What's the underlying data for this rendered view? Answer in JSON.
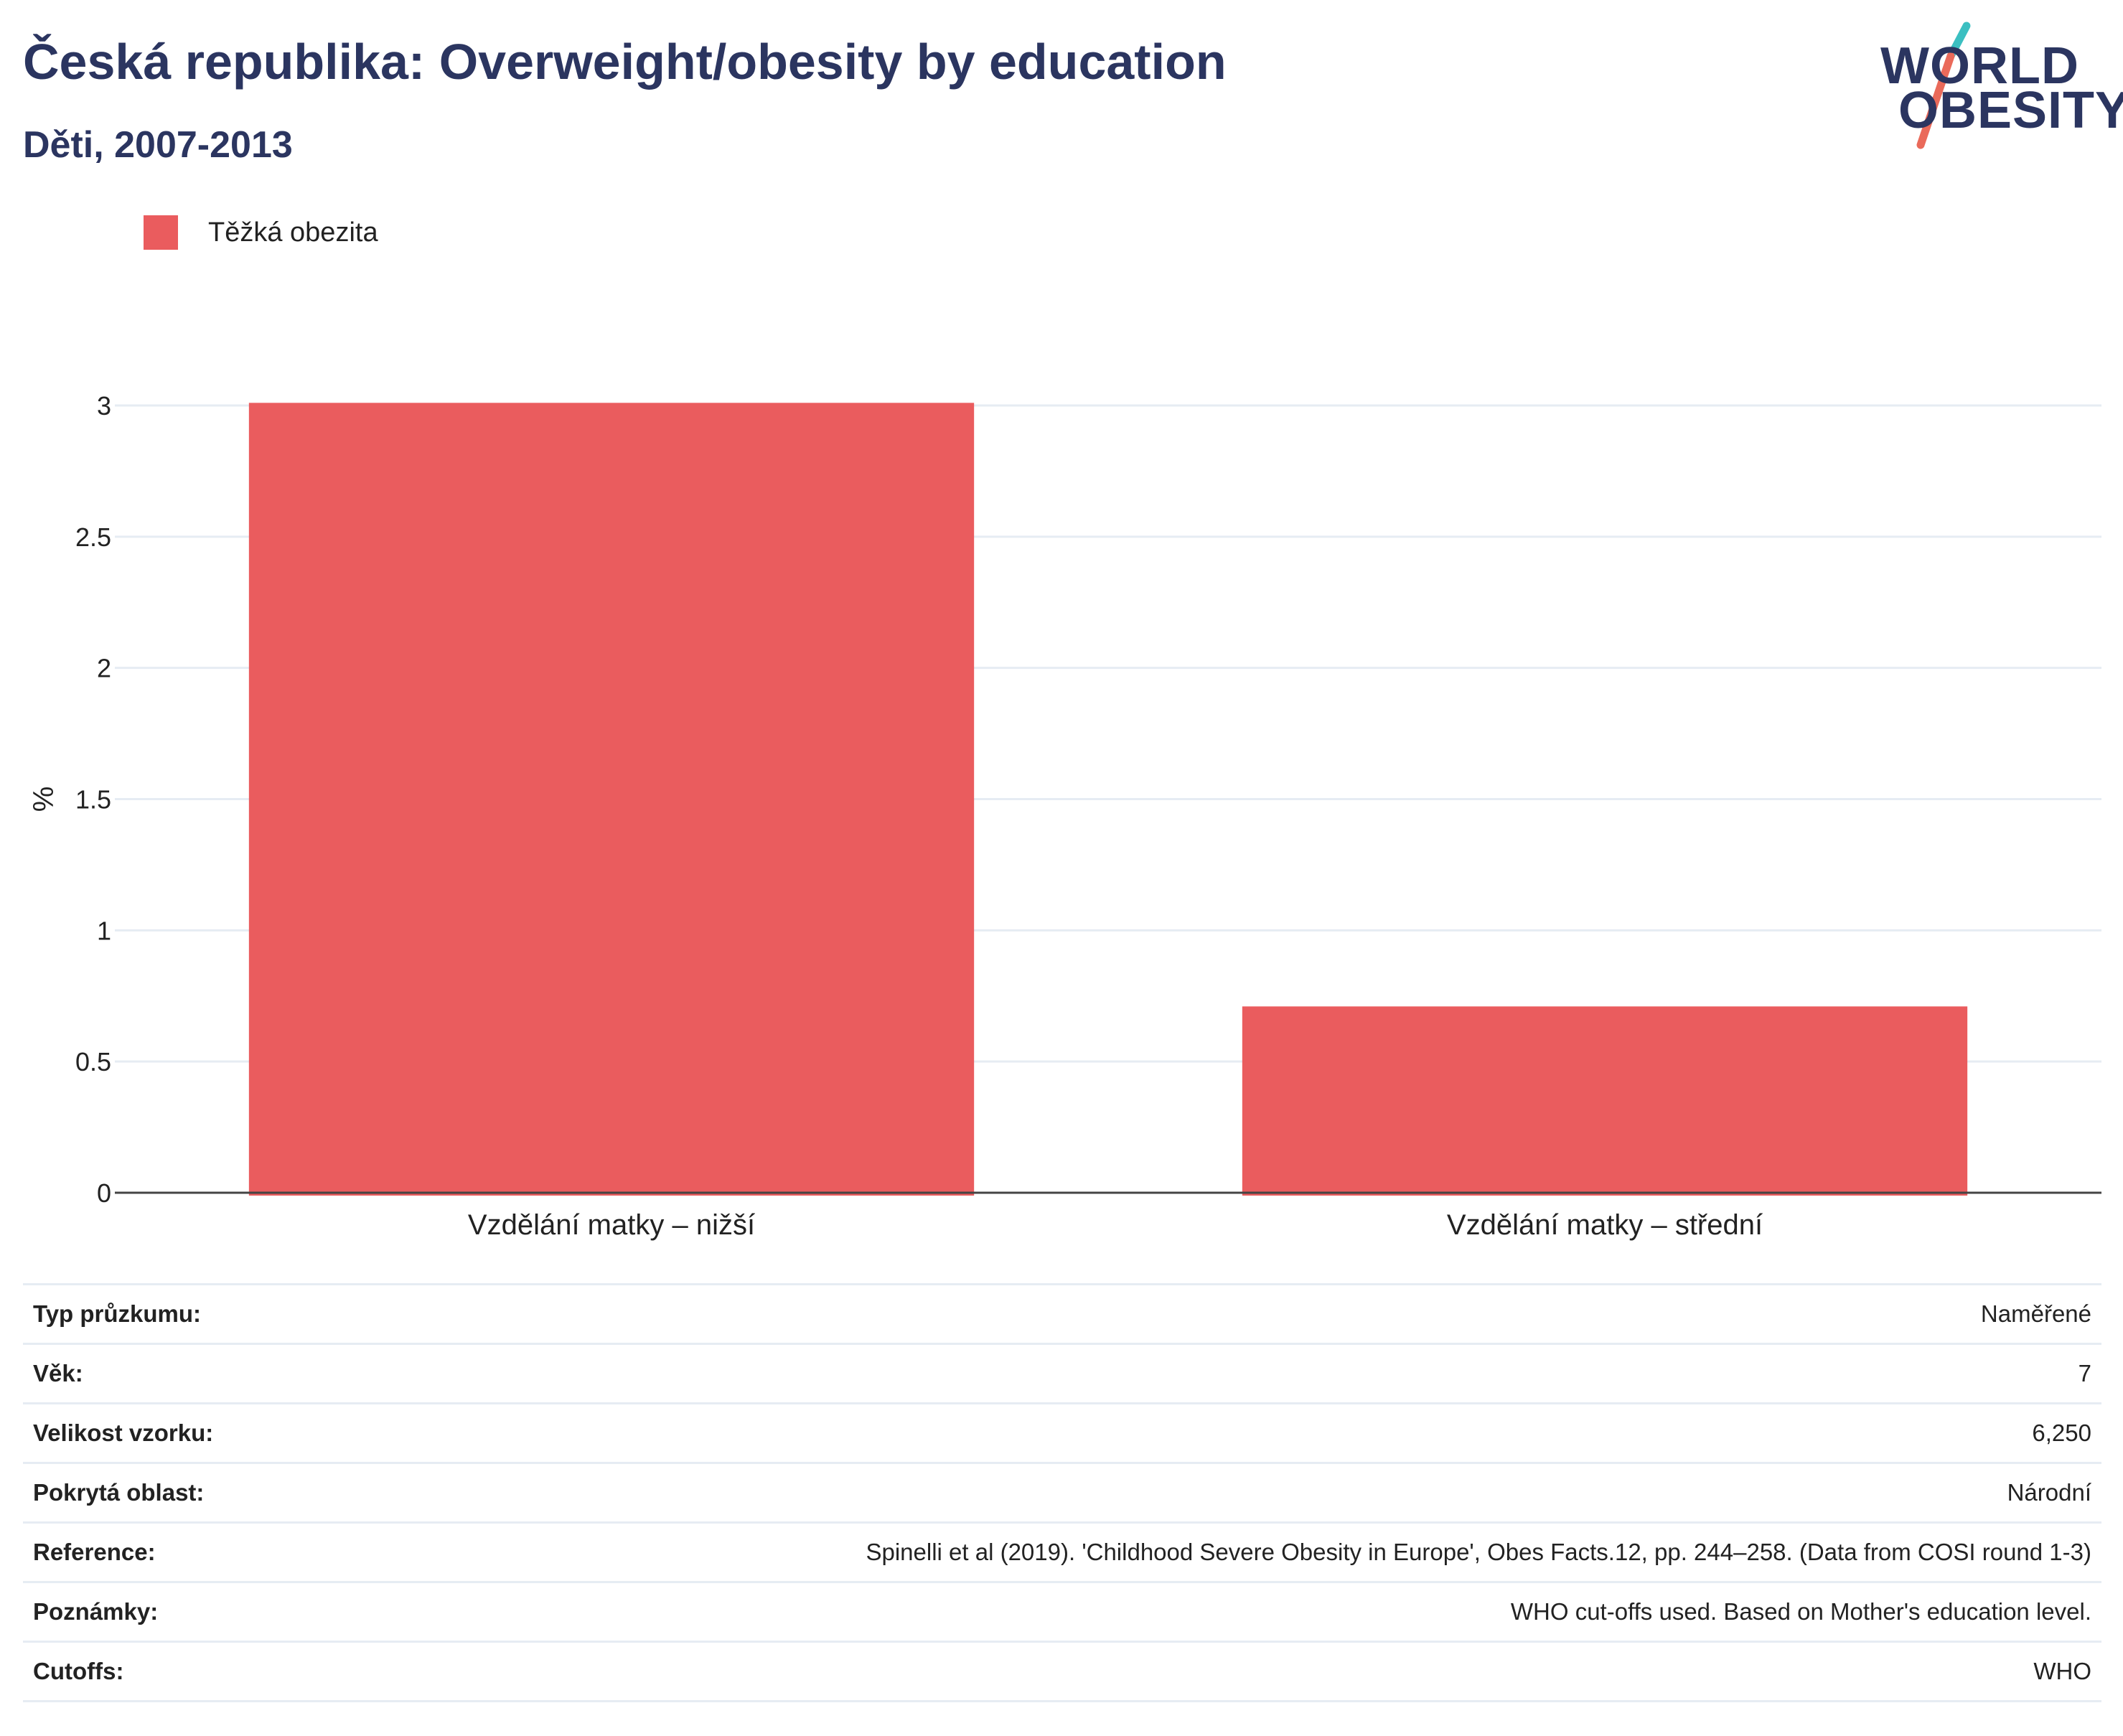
{
  "header": {
    "title": "Česká republika: Overweight/obesity by education",
    "subtitle": "Děti, 2007-2013"
  },
  "logo": {
    "line1": "WORLD",
    "line2": "OBESITY",
    "colors": {
      "text": "#2b3560",
      "slash_top": "#3bbfc1",
      "slash_bottom": "#ea6a5a"
    }
  },
  "legend": {
    "items": [
      {
        "label": "Těžká obezita",
        "color": "#ea5c5e"
      }
    ]
  },
  "chart_data": {
    "type": "bar",
    "categories": [
      "Vzdělání matky – nižší",
      "Vzdělání matky – střední"
    ],
    "series": [
      {
        "name": "Těžká obezita",
        "values": [
          3.01,
          0.71
        ],
        "color": "#ea5c5e"
      }
    ],
    "ylabel": "%",
    "ylim": [
      0,
      3
    ],
    "yticks": [
      0,
      0.5,
      1,
      1.5,
      2,
      2.5,
      3
    ],
    "ytick_labels": [
      "0",
      "0.5",
      "1",
      "1.5",
      "2",
      "2.5",
      "3"
    ],
    "grid": true,
    "legend_position": "top-left"
  },
  "info": {
    "rows": [
      {
        "key": "Typ průzkumu:",
        "value": "Naměřené"
      },
      {
        "key": "Věk:",
        "value": "7"
      },
      {
        "key": "Velikost vzorku:",
        "value": "6,250"
      },
      {
        "key": "Pokrytá oblast:",
        "value": "Národní"
      },
      {
        "key": "Reference:",
        "value": "Spinelli et al (2019). 'Childhood Severe Obesity in Europe', Obes Facts.12, pp. 244–258. (Data from COSI round 1-3)"
      },
      {
        "key": "Poznámky:",
        "value": "WHO cut-offs used. Based on Mother's education level."
      },
      {
        "key": "Cutoffs:",
        "value": "WHO"
      }
    ]
  }
}
